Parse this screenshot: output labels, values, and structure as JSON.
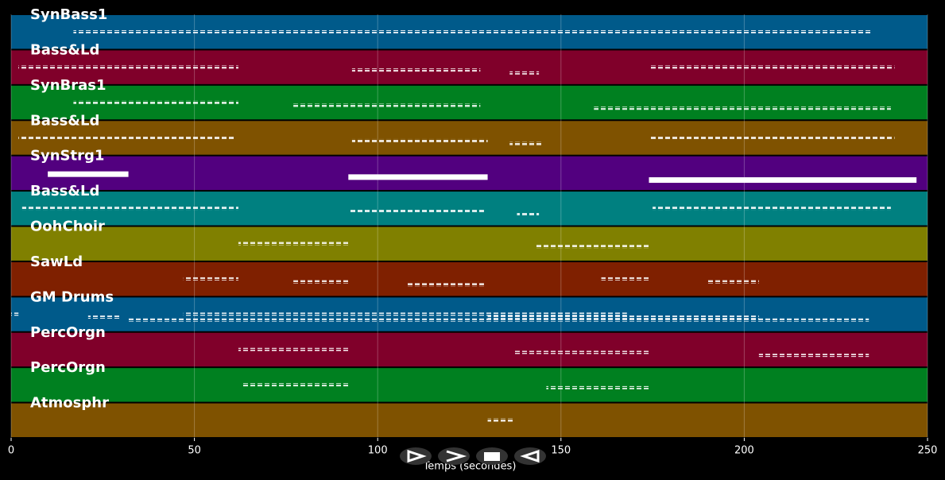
{
  "chart_data": {
    "type": "pianoroll",
    "xlabel": "Temps (secondes)",
    "xlim": [
      0,
      250
    ],
    "xticks": [
      0,
      50,
      100,
      150,
      200,
      250
    ],
    "grid": true,
    "tracks": [
      {
        "name": "SynBass1",
        "color": "#005a8a",
        "segments": [
          [
            17,
            235
          ]
        ]
      },
      {
        "name": "Bass&Ld",
        "color": "#80002a",
        "segments": [
          [
            2,
            62
          ],
          [
            93,
            128
          ],
          [
            136,
            144
          ],
          [
            174,
            241
          ]
        ]
      },
      {
        "name": "SynBras1",
        "color": "#008020",
        "segments": [
          [
            17,
            62
          ],
          [
            77,
            128
          ],
          [
            159,
            240
          ]
        ]
      },
      {
        "name": "Bass&Ld",
        "color": "#7f5200",
        "segments": [
          [
            2,
            61
          ],
          [
            93,
            130
          ],
          [
            136,
            145
          ],
          [
            174,
            241
          ]
        ]
      },
      {
        "name": "SynStrg1",
        "color": "#52007f",
        "segments": [
          [
            10,
            32
          ],
          [
            92,
            130
          ],
          [
            174,
            247
          ]
        ]
      },
      {
        "name": "Bass&Ld",
        "color": "#008080",
        "segments": [
          [
            3,
            62
          ],
          [
            92,
            129
          ],
          [
            138,
            144
          ],
          [
            175,
            240
          ]
        ]
      },
      {
        "name": "OohChoir",
        "color": "#808000",
        "segments": [
          [
            62,
            92
          ],
          [
            143,
            174
          ]
        ]
      },
      {
        "name": "SawLd",
        "color": "#7f2000",
        "segments": [
          [
            47,
            62
          ],
          [
            77,
            92
          ],
          [
            108,
            129
          ],
          [
            161,
            174
          ],
          [
            190,
            204
          ]
        ]
      },
      {
        "name": "GM Drums",
        "color": "#005a8a",
        "segments": [
          [
            0,
            2
          ],
          [
            21,
            30
          ],
          [
            32,
            219
          ],
          [
            47,
            168
          ],
          [
            130,
            204
          ],
          [
            219,
            234
          ]
        ]
      },
      {
        "name": "PercOrgn",
        "color": "#80002a",
        "segments": [
          [
            62,
            92
          ],
          [
            137,
            174
          ],
          [
            204,
            234
          ]
        ]
      },
      {
        "name": "PercOrgn",
        "color": "#008020",
        "segments": [
          [
            63,
            92
          ],
          [
            146,
            174
          ]
        ]
      },
      {
        "name": "Atmosphr",
        "color": "#7f5200",
        "segments": [
          [
            130,
            137
          ]
        ]
      }
    ]
  }
}
